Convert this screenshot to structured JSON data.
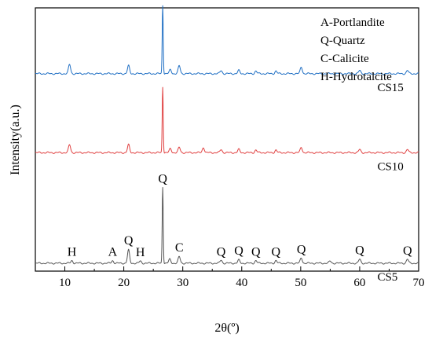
{
  "chart_data": {
    "type": "line",
    "xlabel": "2θ(º)",
    "ylabel": "Intensity(a.u.)",
    "xlim": [
      5,
      70
    ],
    "x_ticks": [
      10,
      20,
      30,
      40,
      50,
      60,
      70
    ],
    "y_ticks_shown": false,
    "grid": false,
    "legend": {
      "placement": "top-right",
      "entries": [
        "A-Portlandite",
        "Q-Quartz",
        "C-Calicite",
        "H-Hydrotalcite"
      ]
    },
    "series": [
      {
        "name": "CS15",
        "color": "#1f6fc4",
        "baseline": 0.75,
        "peaks": [
          [
            10.8,
            0.035
          ],
          [
            20.8,
            0.03
          ],
          [
            26.6,
            0.26
          ],
          [
            27.9,
            0.015
          ],
          [
            29.4,
            0.03
          ],
          [
            36.5,
            0.012
          ],
          [
            39.5,
            0.012
          ],
          [
            42.4,
            0.01
          ],
          [
            45.8,
            0.01
          ],
          [
            50.1,
            0.025
          ],
          [
            60,
            0.012
          ],
          [
            68.1,
            0.012
          ]
        ]
      },
      {
        "name": "CS10",
        "color": "#e04040",
        "baseline": 0.45,
        "peaks": [
          [
            10.8,
            0.03
          ],
          [
            20.8,
            0.03
          ],
          [
            26.6,
            0.25
          ],
          [
            27.9,
            0.015
          ],
          [
            29.4,
            0.02
          ],
          [
            33.5,
            0.02
          ],
          [
            36.5,
            0.012
          ],
          [
            39.5,
            0.012
          ],
          [
            42.4,
            0.01
          ],
          [
            45.8,
            0.01
          ],
          [
            50.1,
            0.02
          ],
          [
            60,
            0.012
          ],
          [
            68.1,
            0.012
          ]
        ]
      },
      {
        "name": "CS5",
        "color": "#555555",
        "baseline": 0.03,
        "peaks": [
          [
            11.2,
            0.01
          ],
          [
            18.1,
            0.01
          ],
          [
            20.8,
            0.05
          ],
          [
            22.8,
            0.008
          ],
          [
            26.6,
            0.29
          ],
          [
            27.8,
            0.015
          ],
          [
            29.4,
            0.025
          ],
          [
            36.5,
            0.012
          ],
          [
            39.5,
            0.012
          ],
          [
            42.4,
            0.01
          ],
          [
            45.8,
            0.01
          ],
          [
            50.1,
            0.02
          ],
          [
            55,
            0.008
          ],
          [
            60,
            0.015
          ],
          [
            68.1,
            0.015
          ]
        ]
      }
    ],
    "annotations": [
      {
        "text": "H",
        "x": 11.2,
        "series": "CS5"
      },
      {
        "text": "A",
        "x": 18.1,
        "series": "CS5"
      },
      {
        "text": "Q",
        "x": 20.8,
        "series": "CS5"
      },
      {
        "text": "H",
        "x": 22.8,
        "series": "CS5"
      },
      {
        "text": "Q",
        "x": 26.6,
        "series": "CS5"
      },
      {
        "text": "C",
        "x": 29.4,
        "series": "CS5"
      },
      {
        "text": "Q",
        "x": 36.5,
        "series": "CS5"
      },
      {
        "text": "Q",
        "x": 39.5,
        "series": "CS5"
      },
      {
        "text": "Q",
        "x": 42.4,
        "series": "CS5"
      },
      {
        "text": "Q",
        "x": 45.8,
        "series": "CS5"
      },
      {
        "text": "Q",
        "x": 50.1,
        "series": "CS5"
      },
      {
        "text": "Q",
        "x": 60.0,
        "series": "CS5"
      },
      {
        "text": "Q",
        "x": 68.1,
        "series": "CS5"
      }
    ]
  }
}
